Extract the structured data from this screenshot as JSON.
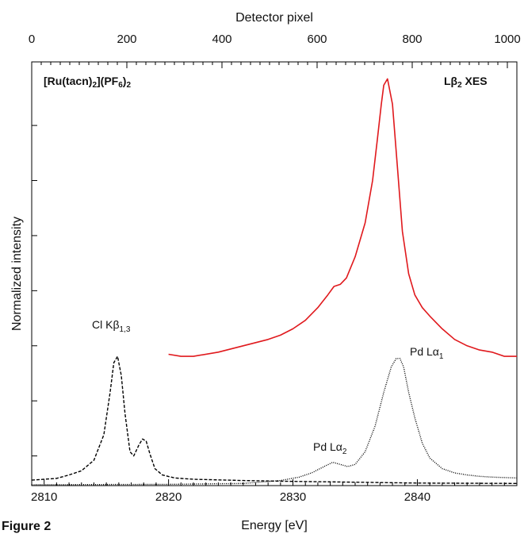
{
  "figure_label": "Figure 2",
  "chart_data": {
    "type": "line",
    "title": "",
    "xlabel": "Energy [eV]",
    "x2label": "Detector pixel",
    "ylabel": "Normalized intensity",
    "xlim": [
      2809,
      2848
    ],
    "x2lim": [
      0,
      1020
    ],
    "ylim": [
      0,
      1.0
    ],
    "xticks": [
      2810,
      2820,
      2830,
      2840
    ],
    "x2ticks": [
      0,
      200,
      400,
      600,
      800,
      1000
    ],
    "grid": false,
    "annotations": {
      "sample": "[Ru(tacn)2](PF6)2",
      "technique": "Lβ2 XES",
      "cl_peak": "Cl Kβ1,3",
      "pd_la1": "Pd Lα1",
      "pd_la2": "Pd Lα2"
    },
    "series": [
      {
        "style": "solid",
        "color": "#e0191d",
        "x": [
          2820.0,
          2821.0,
          2822.0,
          2824.0,
          2826.0,
          2828.0,
          2829.0,
          2830.0,
          2831.0,
          2832.0,
          2832.8,
          2833.3,
          2833.8,
          2834.3,
          2835.0,
          2835.8,
          2836.4,
          2836.8,
          2837.1,
          2837.3,
          2837.6,
          2838.0,
          2838.4,
          2838.8,
          2839.3,
          2839.8,
          2840.4,
          2841.0,
          2842.0,
          2843.0,
          2844.0,
          2845.0,
          2846.0,
          2847.0,
          2848.0
        ],
        "y": [
          0.31,
          0.305,
          0.305,
          0.315,
          0.33,
          0.345,
          0.355,
          0.37,
          0.39,
          0.42,
          0.45,
          0.47,
          0.475,
          0.49,
          0.54,
          0.62,
          0.72,
          0.82,
          0.9,
          0.945,
          0.96,
          0.9,
          0.75,
          0.6,
          0.5,
          0.45,
          0.42,
          0.4,
          0.37,
          0.345,
          0.33,
          0.32,
          0.315,
          0.305,
          0.305
        ]
      },
      {
        "style": "dashed",
        "color": "#000000",
        "x": [
          2809.0,
          2811.0,
          2812.0,
          2813.0,
          2814.0,
          2814.8,
          2815.3,
          2815.6,
          2815.9,
          2816.2,
          2816.5,
          2816.9,
          2817.2,
          2817.6,
          2817.9,
          2818.2,
          2818.5,
          2818.9,
          2819.5,
          2820.5,
          2822.0,
          2826.0,
          2830.0,
          2835.0,
          2840.0,
          2848.0
        ],
        "y": [
          0.013,
          0.017,
          0.025,
          0.035,
          0.06,
          0.12,
          0.22,
          0.29,
          0.305,
          0.26,
          0.17,
          0.08,
          0.07,
          0.095,
          0.11,
          0.105,
          0.075,
          0.04,
          0.025,
          0.018,
          0.015,
          0.012,
          0.01,
          0.008,
          0.006,
          0.005
        ]
      },
      {
        "style": "dotted",
        "color": "#000000",
        "x": [
          2809.0,
          2820.0,
          2826.0,
          2829.0,
          2830.5,
          2831.5,
          2832.5,
          2833.2,
          2833.8,
          2834.4,
          2835.0,
          2835.8,
          2836.6,
          2837.3,
          2837.9,
          2838.3,
          2838.6,
          2838.9,
          2839.3,
          2839.8,
          2840.4,
          2841.0,
          2842.0,
          2843.0,
          2844.0,
          2845.0,
          2846.0,
          2848.0
        ],
        "y": [
          0.002,
          0.003,
          0.005,
          0.012,
          0.02,
          0.03,
          0.045,
          0.055,
          0.05,
          0.045,
          0.05,
          0.08,
          0.14,
          0.22,
          0.28,
          0.3,
          0.3,
          0.28,
          0.22,
          0.16,
          0.1,
          0.065,
          0.04,
          0.03,
          0.025,
          0.022,
          0.02,
          0.018
        ]
      }
    ]
  }
}
